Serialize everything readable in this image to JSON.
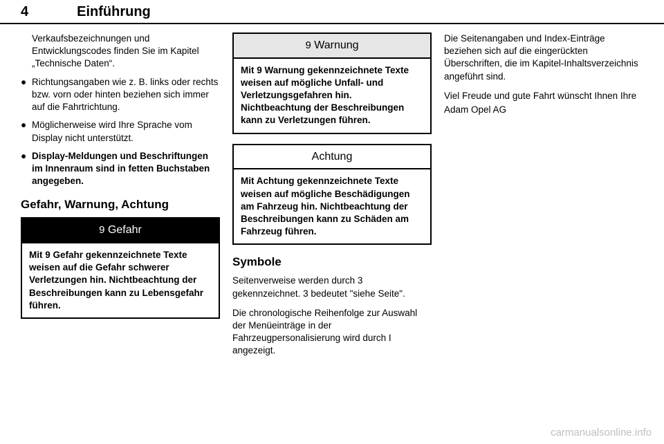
{
  "header": {
    "page_number": "4",
    "section": "Einführung"
  },
  "col1": {
    "bullets": [
      "Verkaufsbezeichnungen und Entwicklungscodes finden Sie im Kapitel „Technische Daten“.",
      "Richtungsangaben wie z. B. links oder rechts bzw. vorn oder hinten beziehen sich immer auf die Fahrtrichtung.",
      "Möglicherweise wird Ihre Spra­che vom Display nicht unter­stützt.",
      "Display-Meldungen und Beschriftungen im Innenraum sind in fetten Buchstaben ange­geben."
    ],
    "heading": "Gefahr, Warnung, Achtung",
    "gefahr": {
      "title": "Gefahr",
      "body": "Mit 9 Gefahr gekennzeichnete Texte weisen auf die Gefahr schwerer Verletzungen hin. Nicht­beachtung der Beschreibungen kann zu Lebensgefahr führen."
    }
  },
  "col2": {
    "warnung": {
      "title": "Warnung",
      "body": "Mit 9 Warnung gekennzeichnete Texte weisen auf mögliche Unfall- und Verletzungsgefahren hin. Nichtbeachtung der Beschreibun­gen kann zu Verletzungen führen."
    },
    "achtung": {
      "title": "Achtung",
      "body": "Mit Achtung gekennzeichnete Texte weisen auf mögliche Beschädigungen am Fahrzeug hin. Nichtbeachtung der Beschrei­bungen kann zu Schäden am Fahrzeug führen."
    },
    "symbole_heading": "Symbole",
    "symbole_p1": "Seitenverweise werden durch 3 gekennzeichnet. 3 bedeutet \"siehe Seite\".",
    "symbole_p2": "Die chronologische Reihenfolge zur Auswahl der Menüeinträge in der Fahrzeugpersonalisierung wird durch I angezeigt."
  },
  "col3": {
    "p1": "Die Seitenangaben und Index-Einträge beziehen sich auf die einge­rückten Überschriften, die im Kapitel-Inhaltsverzeichnis angeführt sind.",
    "p2": "Viel Freude und gute Fahrt wünscht Ihnen Ihre",
    "p3": "Adam Opel AG"
  },
  "watermark": "carmanualsonline.info",
  "icons": {
    "triangle": "9"
  }
}
